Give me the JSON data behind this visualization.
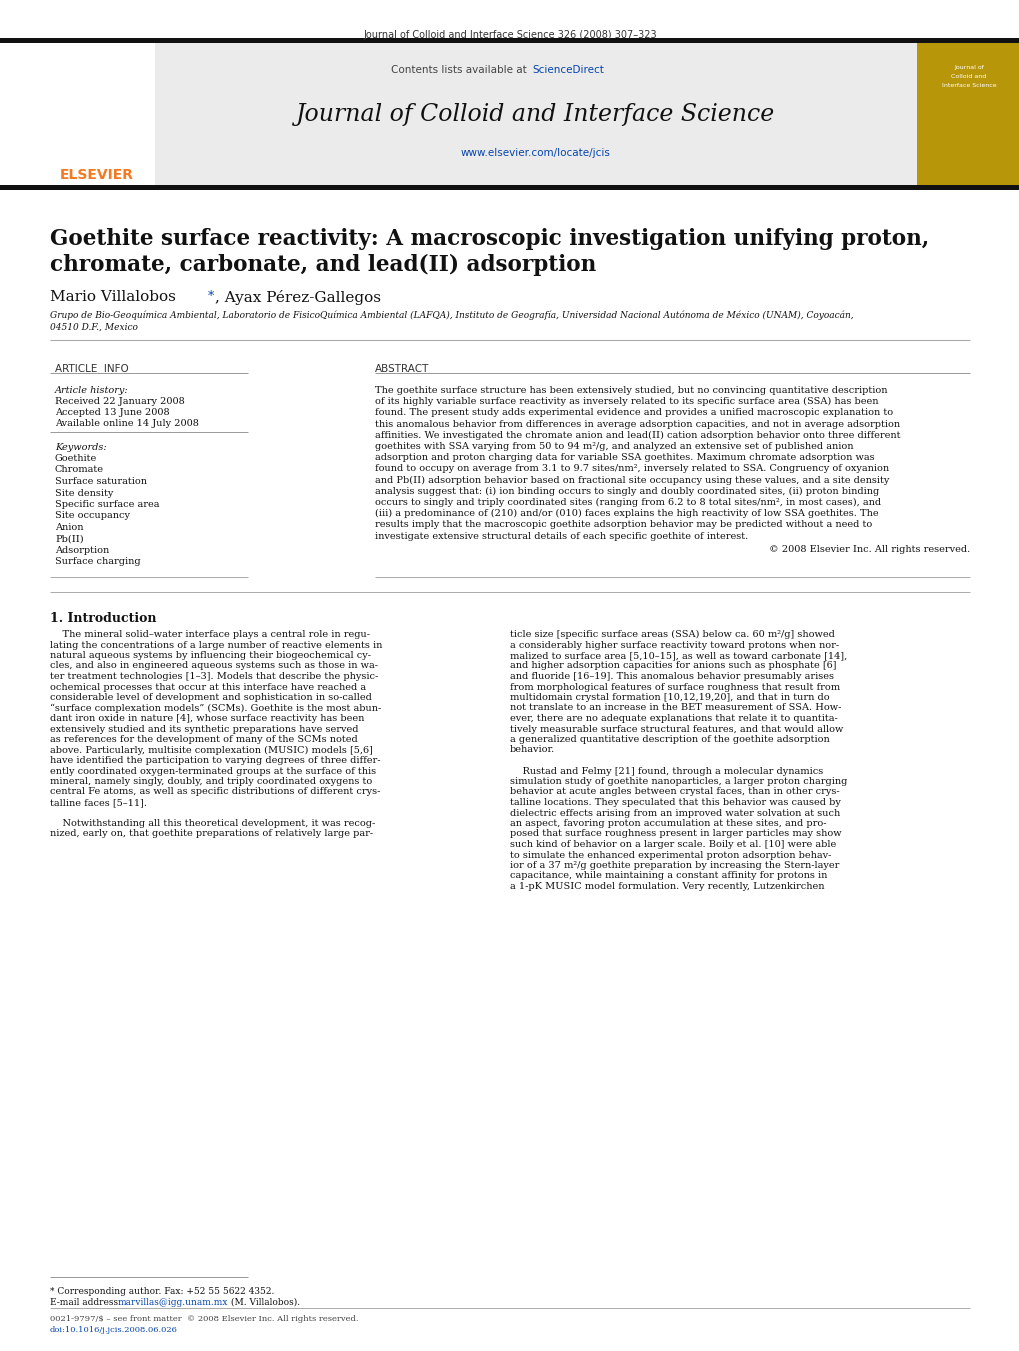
{
  "page_title": "Journal of Colloid and Interface Science 326 (2008) 307–323",
  "journal_name": "Journal of Colloid and Interface Science",
  "journal_url": "www.elsevier.com/locate/jcis",
  "contents_before": "Contents lists available at ",
  "contents_link": "ScienceDirect",
  "article_title_line1": "Goethite surface reactivity: A macroscopic investigation unifying proton,",
  "article_title_line2": "chromate, carbonate, and lead(II) adsorption",
  "author_name": "Mario Villalobos",
  "author_rest": ", Ayax Pérez-Gallegos",
  "affil1": "Grupo de Bio-Geoquímica Ambiental, Laboratorio de FisicoQuímica Ambiental (LAFQA), Instituto de Geografía, Universidad Nacional Autónoma de México (UNAM), Coyoacán,",
  "affil2": "04510 D.F., Mexico",
  "article_info_header": "ARTICLE  INFO",
  "article_history_header": "Article history:",
  "received": "Received 22 January 2008",
  "accepted": "Accepted 13 June 2008",
  "available": "Available online 14 July 2008",
  "keywords_header": "Keywords:",
  "keywords": [
    "Goethite",
    "Chromate",
    "Surface saturation",
    "Site density",
    "Specific surface area",
    "Site occupancy",
    "Anion",
    "Pb(II)",
    "Adsorption",
    "Surface charging"
  ],
  "abstract_header": "ABSTRACT",
  "abstract_lines": [
    "The goethite surface structure has been extensively studied, but no convincing quantitative description",
    "of its highly variable surface reactivity as inversely related to its specific surface area (SSA) has been",
    "found. The present study adds experimental evidence and provides a unified macroscopic explanation to",
    "this anomalous behavior from differences in average adsorption capacities, and not in average adsorption",
    "affinities. We investigated the chromate anion and lead(II) cation adsorption behavior onto three different",
    "goethites with SSA varying from 50 to 94 m²/g, and analyzed an extensive set of published anion",
    "adsorption and proton charging data for variable SSA goethites. Maximum chromate adsorption was",
    "found to occupy on average from 3.1 to 9.7 sites/nm², inversely related to SSA. Congruency of oxyanion",
    "and Pb(II) adsorption behavior based on fractional site occupancy using these values, and a site density",
    "analysis suggest that: (i) ion binding occurs to singly and doubly coordinated sites, (ii) proton binding",
    "occurs to singly and triply coordinated sites (ranging from 6.2 to 8 total sites/nm², in most cases), and",
    "(iii) a predominance of (210) and/or (010) faces explains the high reactivity of low SSA goethites. The",
    "results imply that the macroscopic goethite adsorption behavior may be predicted without a need to",
    "investigate extensive structural details of each specific goethite of interest."
  ],
  "copyright": "© 2008 Elsevier Inc. All rights reserved.",
  "intro_header": "1. Introduction",
  "intro_col1_lines": [
    "    The mineral solid–water interface plays a central role in regu-",
    "lating the concentrations of a large number of reactive elements in",
    "natural aqueous systems by influencing their biogeochemical cy-",
    "cles, and also in engineered aqueous systems such as those in wa-",
    "ter treatment technologies [1–3]. Models that describe the physic-",
    "ochemical processes that occur at this interface have reached a",
    "considerable level of development and sophistication in so-called",
    "“surface complexation models” (SCMs). Goethite is the most abun-",
    "dant iron oxide in nature [4], whose surface reactivity has been",
    "extensively studied and its synthetic preparations have served",
    "as references for the development of many of the SCMs noted",
    "above. Particularly, multisite complexation (MUSIC) models [5,6]",
    "have identified the participation to varying degrees of three differ-",
    "ently coordinated oxygen-terminated groups at the surface of this",
    "mineral, namely singly, doubly, and triply coordinated oxygens to",
    "central Fe atoms, as well as specific distributions of different crys-",
    "talline faces [5–11].",
    "",
    "    Notwithstanding all this theoretical development, it was recog-",
    "nized, early on, that goethite preparations of relatively large par-"
  ],
  "intro_col2_lines": [
    "ticle size [specific surface areas (SSA) below ca. 60 m²/g] showed",
    "a considerably higher surface reactivity toward protons when nor-",
    "malized to surface area [5,10–15], as well as toward carbonate [14],",
    "and higher adsorption capacities for anions such as phosphate [6]",
    "and fluoride [16–19]. This anomalous behavior presumably arises",
    "from morphological features of surface roughness that result from",
    "multidomain crystal formation [10,12,19,20], and that in turn do",
    "not translate to an increase in the BET measurement of SSA. How-",
    "ever, there are no adequate explanations that relate it to quantita-",
    "tively measurable surface structural features, and that would allow",
    "a generalized quantitative description of the goethite adsorption",
    "behavior.",
    "",
    "    Rustad and Felmy [21] found, through a molecular dynamics",
    "simulation study of goethite nanoparticles, a larger proton charging",
    "behavior at acute angles between crystal faces, than in other crys-",
    "talline locations. They speculated that this behavior was caused by",
    "dielectric effects arising from an improved water solvation at such",
    "an aspect, favoring proton accumulation at these sites, and pro-",
    "posed that surface roughness present in larger particles may show",
    "such kind of behavior on a larger scale. Boily et al. [10] were able",
    "to simulate the enhanced experimental proton adsorption behav-",
    "ior of a 37 m²/g goethite preparation by increasing the Stern-layer",
    "capacitance, while maintaining a constant affinity for protons in",
    "a 1-pK MUSIC model formulation. Very recently, Lutzenkirchen"
  ],
  "footnote1": "* Corresponding author. Fax: +52 55 5622 4352.",
  "footnote2a": "E-mail address: ",
  "footnote2b": "marvillas@igg.unam.mx",
  "footnote2c": " (M. Villalobos).",
  "footer1": "0021-9797/$ – see front matter  © 2008 Elsevier Inc. All rights reserved.",
  "footer2": "doi:10.1016/j.jcis.2008.06.026",
  "bg_color": "#ffffff",
  "gray_bg": "#ebebeb",
  "gold_color": "#b8960a",
  "blue_link": "#0645ad",
  "orange_elsevier": "#f47920",
  "black_bar": "#111111",
  "text_color": "#111111",
  "gray_line": "#999999"
}
